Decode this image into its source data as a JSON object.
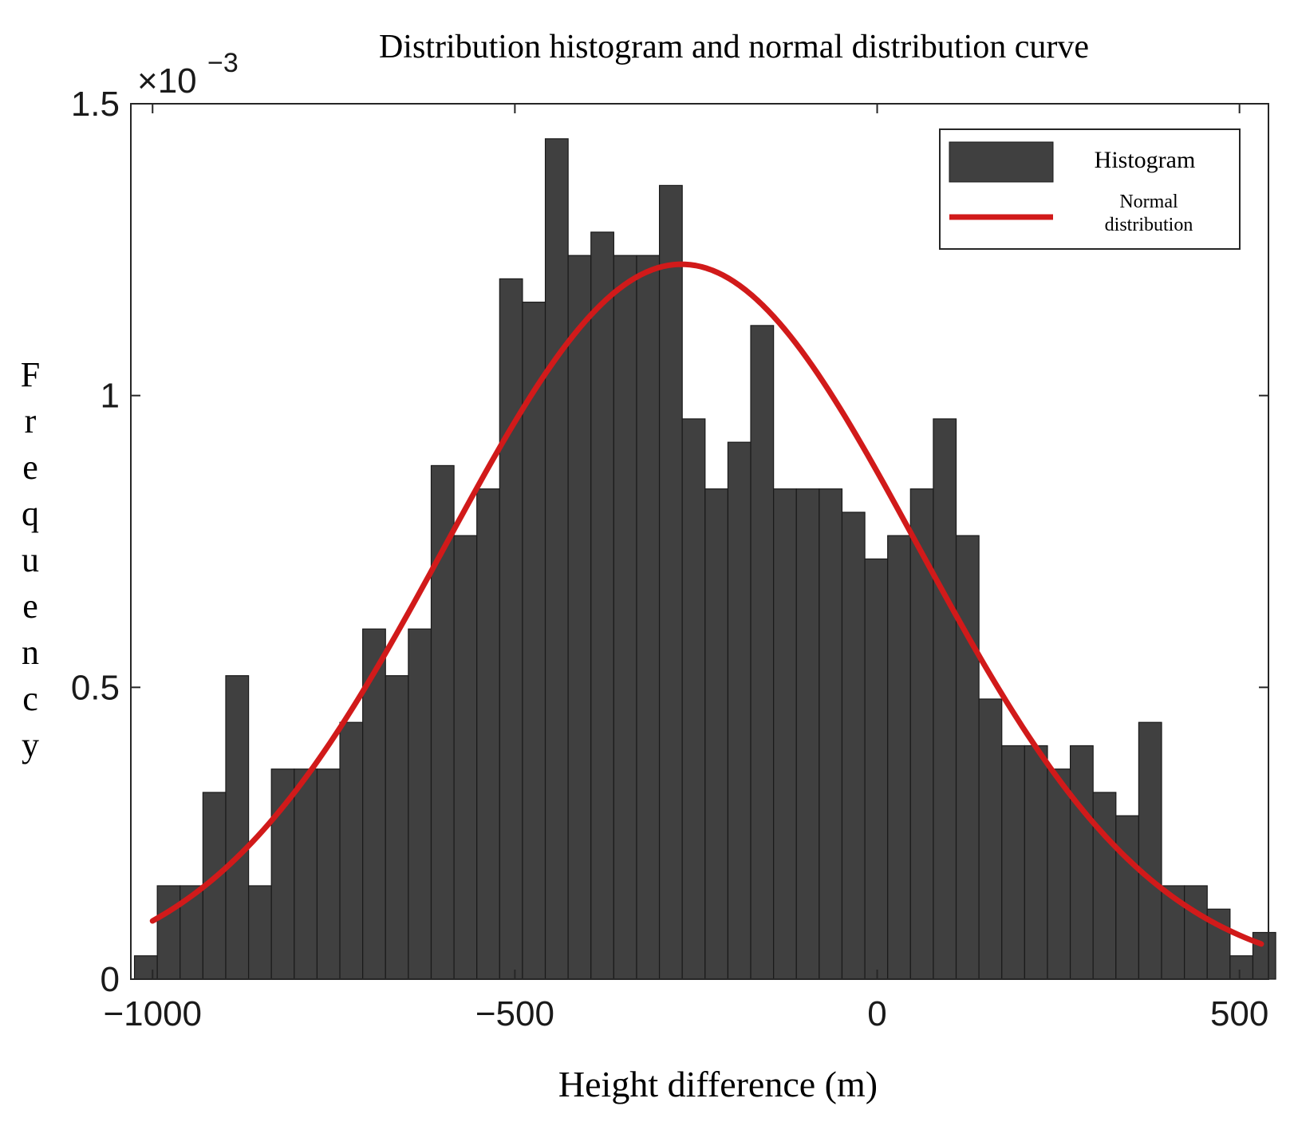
{
  "chart_data": {
    "type": "bar",
    "title": "Distribution histogram and normal distribution curve",
    "xlabel": "Height difference (m)",
    "ylabel": "Frequency",
    "y_scale_exponent_base": "×10",
    "y_scale_exponent_power": "−3",
    "xlim": [
      -1030,
      540
    ],
    "ylim": [
      0,
      1.5
    ],
    "xticks": [
      -1000,
      -500,
      0,
      500
    ],
    "xtick_labels": [
      "−1000",
      "−500",
      "0",
      "500"
    ],
    "yticks": [
      0,
      0.5,
      1,
      1.5
    ],
    "ytick_labels": [
      "0",
      "0.5",
      "1",
      "1.5"
    ],
    "bin_width": 31.5,
    "series": [
      {
        "name": "Histogram",
        "kind": "bar",
        "color": "#404040",
        "bin_starts": [
          -1025,
          -993.5,
          -962,
          -930.5,
          -899,
          -867.5,
          -836,
          -804.5,
          -773,
          -741.5,
          -710,
          -678.5,
          -647,
          -615.5,
          -584,
          -552.5,
          -521,
          -489.5,
          -458,
          -426.5,
          -395,
          -363.5,
          -332,
          -300.5,
          -269,
          -237.5,
          -206,
          -174.5,
          -143,
          -111.5,
          -80,
          -48.5,
          -17,
          14.5,
          46,
          77.5,
          109,
          140.5,
          172,
          203.5,
          235,
          266.5,
          298,
          329.5,
          361,
          392.5,
          424,
          455.5,
          487,
          518.5
        ],
        "values": [
          0.04,
          0.16,
          0.16,
          0.32,
          0.52,
          0.16,
          0.36,
          0.36,
          0.36,
          0.44,
          0.6,
          0.52,
          0.6,
          0.88,
          0.76,
          0.84,
          1.2,
          1.16,
          1.44,
          1.24,
          1.28,
          1.24,
          1.24,
          1.36,
          0.96,
          0.84,
          0.92,
          1.12,
          0.84,
          0.84,
          0.84,
          0.8,
          0.72,
          0.76,
          0.84,
          0.96,
          0.76,
          0.48,
          0.4,
          0.4,
          0.36,
          0.4,
          0.32,
          0.28,
          0.44,
          0.16,
          0.16,
          0.12,
          0.04,
          0.08
        ]
      },
      {
        "name": "Normal distribution",
        "kind": "line",
        "color": "#d11a1a",
        "mean": -270,
        "std": 326,
        "x_range": [
          -1000,
          530
        ]
      }
    ],
    "legend": {
      "placement": "top-right",
      "entries": [
        {
          "label": "Histogram",
          "swatch": "bar"
        },
        {
          "label_line1": "Normal",
          "label_line2": "distribution",
          "swatch": "line"
        }
      ]
    },
    "grid": false
  }
}
